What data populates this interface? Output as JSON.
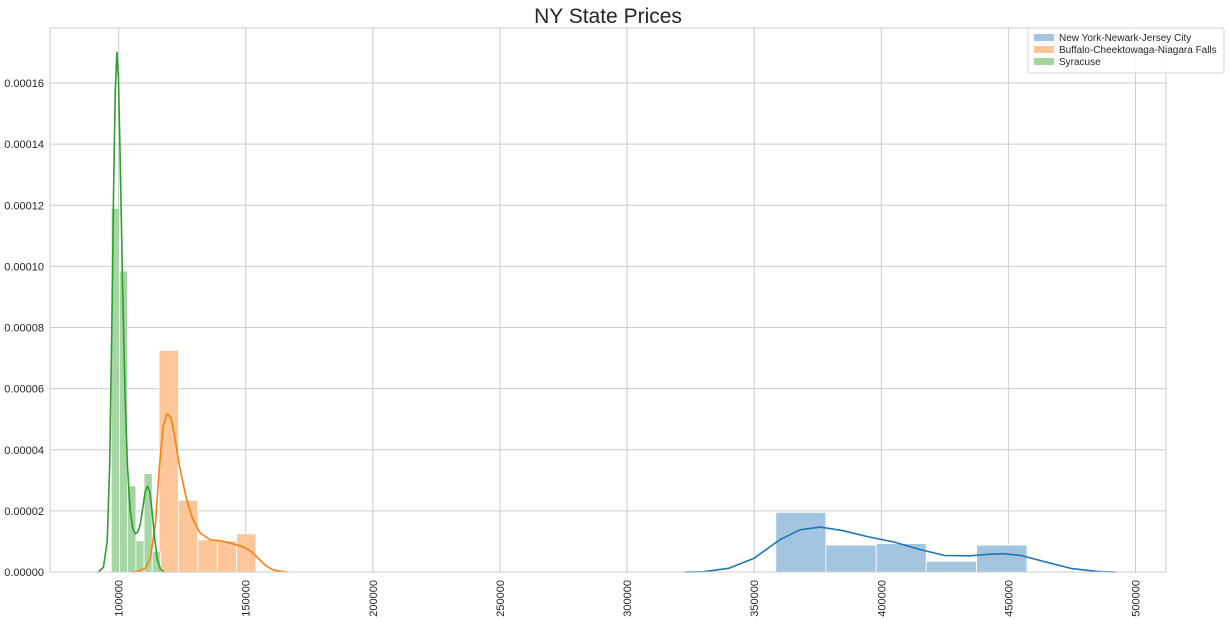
{
  "chart_data": {
    "type": "bar",
    "title": "NY State Prices",
    "xlabel": "",
    "ylabel": "",
    "xlim": [
      73000,
      512000
    ],
    "ylim": [
      0,
      0.000178
    ],
    "grid": true,
    "legend_position": "top-right",
    "x_ticks": [
      100000,
      150000,
      200000,
      250000,
      300000,
      350000,
      400000,
      450000,
      500000
    ],
    "y_ticks": [
      0.0,
      2e-05,
      4e-05,
      6e-05,
      8e-05,
      0.0001,
      0.00012,
      0.00014,
      0.00016
    ],
    "x_tick_labels": [
      "100000",
      "150000",
      "200000",
      "250000",
      "300000",
      "350000",
      "400000",
      "450000",
      "500000"
    ],
    "y_tick_labels": [
      "0.00000",
      "0.00002",
      "0.00004",
      "0.00006",
      "0.00008",
      "0.00010",
      "0.00012",
      "0.00014",
      "0.00016",
      ""
    ],
    "series": [
      {
        "name": "New York-Newark-Jersey City",
        "bar_color": "#a3c5df",
        "line_color": "#1f77b4",
        "bins": [
          {
            "x0": 358500,
            "x1": 378200,
            "density": 1.95e-05
          },
          {
            "x0": 378200,
            "x1": 398000,
            "density": 8.8e-06
          },
          {
            "x0": 398000,
            "x1": 417700,
            "density": 9.3e-06
          },
          {
            "x0": 417700,
            "x1": 437500,
            "density": 3.5e-06
          },
          {
            "x0": 437500,
            "x1": 457300,
            "density": 8.8e-06
          }
        ],
        "kde": [
          [
            323000,
            0.0
          ],
          [
            330000,
            1e-07
          ],
          [
            340000,
            1.2e-06
          ],
          [
            350000,
            4.5e-06
          ],
          [
            360000,
            1.05e-05
          ],
          [
            368000,
            1.38e-05
          ],
          [
            376000,
            1.47e-05
          ],
          [
            385000,
            1.35e-05
          ],
          [
            395000,
            1.15e-05
          ],
          [
            405000,
            9.8e-06
          ],
          [
            415000,
            7.4e-06
          ],
          [
            425000,
            5.4e-06
          ],
          [
            435000,
            5.3e-06
          ],
          [
            442000,
            5.8e-06
          ],
          [
            448000,
            6e-06
          ],
          [
            455000,
            5.4e-06
          ],
          [
            465000,
            3.2e-06
          ],
          [
            475000,
            1.1e-06
          ],
          [
            485000,
            2e-07
          ],
          [
            492000,
            0.0
          ]
        ]
      },
      {
        "name": "Buffalo-Cheektowaga-Niagara Falls",
        "bar_color": "#ffc69a",
        "line_color": "#ff7f0e",
        "bins": [
          {
            "x0": 115900,
            "x1": 123500,
            "density": 7.25e-05
          },
          {
            "x0": 123500,
            "x1": 131200,
            "density": 2.35e-05
          },
          {
            "x0": 131200,
            "x1": 138800,
            "density": 1.05e-05
          },
          {
            "x0": 138800,
            "x1": 146400,
            "density": 1.02e-05
          },
          {
            "x0": 146400,
            "x1": 154000,
            "density": 1.25e-05
          }
        ],
        "kde": [
          [
            105000,
            0.0
          ],
          [
            108000,
            3e-07
          ],
          [
            110500,
            1.2e-06
          ],
          [
            112500,
            4.5e-06
          ],
          [
            114500,
            1.6e-05
          ],
          [
            116000,
            3.4e-05
          ],
          [
            117500,
            4.75e-05
          ],
          [
            119000,
            5.18e-05
          ],
          [
            120500,
            5.05e-05
          ],
          [
            122000,
            4.45e-05
          ],
          [
            124000,
            3.45e-05
          ],
          [
            126500,
            2.45e-05
          ],
          [
            129000,
            1.75e-05
          ],
          [
            132000,
            1.28e-05
          ],
          [
            136000,
            1.05e-05
          ],
          [
            140000,
            1.02e-05
          ],
          [
            145000,
            9.2e-06
          ],
          [
            149000,
            8.2e-06
          ],
          [
            152000,
            6.8e-06
          ],
          [
            155000,
            4.4e-06
          ],
          [
            158000,
            2e-06
          ],
          [
            161000,
            6e-07
          ],
          [
            166000,
            0.0
          ]
        ]
      },
      {
        "name": "Syracuse",
        "bar_color": "#a5d6a3",
        "line_color": "#2ca02c",
        "bins": [
          {
            "x0": 97100,
            "x1": 100300,
            "density": 0.000119
          },
          {
            "x0": 100300,
            "x1": 103500,
            "density": 9.85e-05
          },
          {
            "x0": 103500,
            "x1": 106800,
            "density": 2.82e-05
          },
          {
            "x0": 106800,
            "x1": 110000,
            "density": 1.02e-05
          },
          {
            "x0": 110000,
            "x1": 113200,
            "density": 3.22e-05
          },
          {
            "x0": 113200,
            "x1": 116400,
            "density": 6.8e-06
          }
        ],
        "kde": [
          [
            92000,
            0.0
          ],
          [
            94000,
            1.5e-06
          ],
          [
            95500,
            1e-05
          ],
          [
            96500,
            3.5e-05
          ],
          [
            97300,
            8e-05
          ],
          [
            98000,
            0.000125
          ],
          [
            98700,
            0.000158
          ],
          [
            99300,
            0.00017
          ],
          [
            99900,
            0.000162
          ],
          [
            100600,
            0.000135
          ],
          [
            101500,
            9.5e-05
          ],
          [
            102500,
            5.85e-05
          ],
          [
            103500,
            3.45e-05
          ],
          [
            104500,
            2.05e-05
          ],
          [
            105500,
            1.45e-05
          ],
          [
            106500,
            1.25e-05
          ],
          [
            107500,
            1.3e-05
          ],
          [
            108500,
            1.55e-05
          ],
          [
            109500,
            2.1e-05
          ],
          [
            110500,
            2.65e-05
          ],
          [
            111400,
            2.8e-05
          ],
          [
            112300,
            2.6e-05
          ],
          [
            113200,
            1.95e-05
          ],
          [
            114200,
            1.1e-05
          ],
          [
            115200,
            4e-06
          ],
          [
            116500,
            8e-07
          ],
          [
            118000,
            0.0
          ]
        ]
      }
    ]
  }
}
